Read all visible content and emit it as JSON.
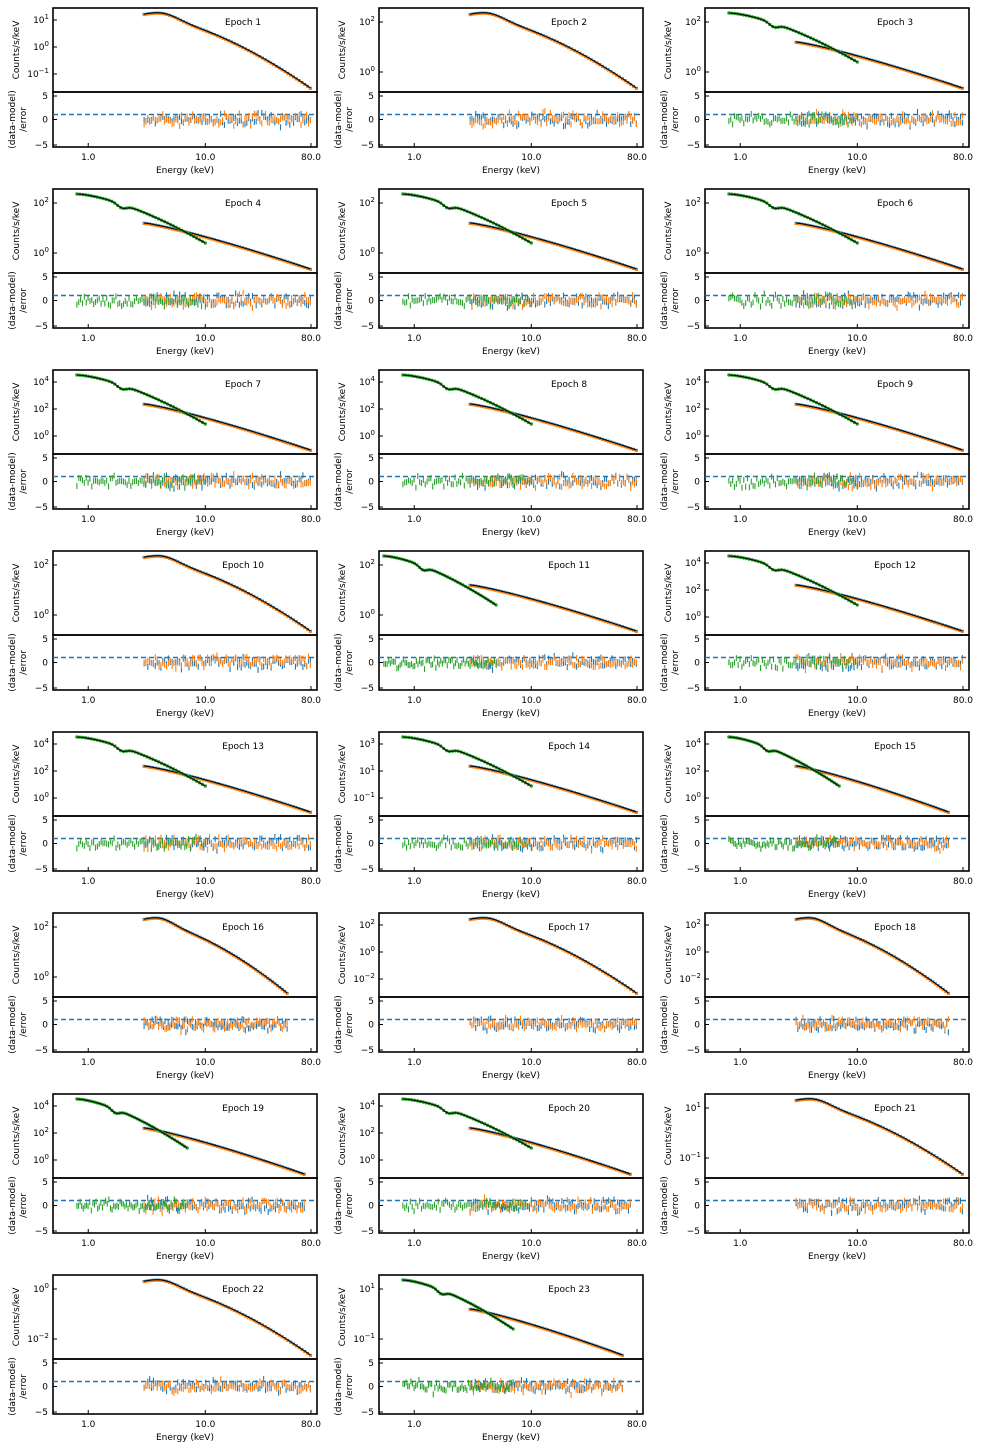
{
  "figure": {
    "panel_title_prefix": "Epoch",
    "top_ylabel": "Counts/s/keV",
    "bottom_ylabel_line1": "(data-model)",
    "bottom_ylabel_line2": "/error",
    "xlabel": "Energy (keV)",
    "x_ticks": [
      "1.0",
      "10.0",
      "80.0"
    ],
    "resid_ticks": [
      "5",
      "0",
      "−5"
    ],
    "colors": {
      "nustar_a": "#1f77b4",
      "nustar_b": "#ff7f0e",
      "swift": "#2ca02c",
      "model": "#000000",
      "ref_line": "#1f77b4"
    }
  },
  "chart_data": [
    {
      "type": "scatter",
      "title": "Epoch 1",
      "xlabel": "Energy (keV)",
      "ylabel": "Counts/s/keV",
      "xscale": "log",
      "xlim": [
        0.5,
        90
      ],
      "yscale": "log",
      "ytick_labels": [
        "10^1",
        "10^0",
        "10^-1"
      ],
      "has_swift": false,
      "xrange": [
        3,
        79
      ],
      "resid_ylim": [
        -5,
        5
      ]
    },
    {
      "type": "scatter",
      "title": "Epoch 2",
      "xlabel": "Energy (keV)",
      "ylabel": "Counts/s/keV",
      "xscale": "log",
      "xlim": [
        0.5,
        90
      ],
      "yscale": "log",
      "ytick_labels": [
        "10^2",
        "10^0"
      ],
      "has_swift": false,
      "xrange": [
        3,
        79
      ],
      "resid_ylim": [
        -5,
        5
      ]
    },
    {
      "type": "scatter",
      "title": "Epoch 3",
      "xlabel": "Energy (keV)",
      "ylabel": "Counts/s/keV",
      "xscale": "log",
      "xlim": [
        0.5,
        90
      ],
      "yscale": "log",
      "ytick_labels": [
        "10^2",
        "10^0"
      ],
      "has_swift": true,
      "xrange": [
        0.8,
        79
      ],
      "resid_ylim": [
        -5,
        5
      ]
    },
    {
      "type": "scatter",
      "title": "Epoch 4",
      "xlabel": "Energy (keV)",
      "ylabel": "Counts/s/keV",
      "xscale": "log",
      "xlim": [
        0.5,
        90
      ],
      "yscale": "log",
      "ytick_labels": [
        "10^2",
        "10^0"
      ],
      "has_swift": true,
      "xrange": [
        0.8,
        79
      ],
      "resid_ylim": [
        -5,
        5
      ]
    },
    {
      "type": "scatter",
      "title": "Epoch 5",
      "xlabel": "Energy (keV)",
      "ylabel": "Counts/s/keV",
      "xscale": "log",
      "xlim": [
        0.5,
        90
      ],
      "yscale": "log",
      "ytick_labels": [
        "10^2",
        "10^0"
      ],
      "has_swift": true,
      "xrange": [
        0.8,
        79
      ],
      "resid_ylim": [
        -5,
        5
      ]
    },
    {
      "type": "scatter",
      "title": "Epoch 6",
      "xlabel": "Energy (keV)",
      "ylabel": "Counts/s/keV",
      "xscale": "log",
      "xlim": [
        0.5,
        90
      ],
      "yscale": "log",
      "ytick_labels": [
        "10^2",
        "10^0"
      ],
      "has_swift": true,
      "xrange": [
        0.8,
        79
      ],
      "resid_ylim": [
        -5,
        5
      ]
    },
    {
      "type": "scatter",
      "title": "Epoch 7",
      "xlabel": "Energy (keV)",
      "ylabel": "Counts/s/keV",
      "xscale": "log",
      "xlim": [
        0.5,
        90
      ],
      "yscale": "log",
      "ytick_labels": [
        "10^4",
        "10^2",
        "10^0"
      ],
      "has_swift": true,
      "xrange": [
        0.8,
        79
      ],
      "resid_ylim": [
        -5,
        5
      ]
    },
    {
      "type": "scatter",
      "title": "Epoch 8",
      "xlabel": "Energy (keV)",
      "ylabel": "Counts/s/keV",
      "xscale": "log",
      "xlim": [
        0.5,
        90
      ],
      "yscale": "log",
      "ytick_labels": [
        "10^4",
        "10^2",
        "10^0"
      ],
      "has_swift": true,
      "xrange": [
        0.8,
        79
      ],
      "resid_ylim": [
        -5,
        5
      ]
    },
    {
      "type": "scatter",
      "title": "Epoch 9",
      "xlabel": "Energy (keV)",
      "ylabel": "Counts/s/keV",
      "xscale": "log",
      "xlim": [
        0.5,
        90
      ],
      "yscale": "log",
      "ytick_labels": [
        "10^4",
        "10^2",
        "10^0"
      ],
      "has_swift": true,
      "xrange": [
        0.8,
        79
      ],
      "resid_ylim": [
        -5,
        5
      ]
    },
    {
      "type": "scatter",
      "title": "Epoch 10",
      "xlabel": "Energy (keV)",
      "ylabel": "Counts/s/keV",
      "xscale": "log",
      "xlim": [
        0.5,
        90
      ],
      "yscale": "log",
      "ytick_labels": [
        "10^2",
        "10^0"
      ],
      "has_swift": false,
      "xrange": [
        3,
        79
      ],
      "resid_ylim": [
        -5,
        5
      ]
    },
    {
      "type": "scatter",
      "title": "Epoch 11",
      "xlabel": "Energy (keV)",
      "ylabel": "Counts/s/keV",
      "xscale": "log",
      "xlim": [
        0.5,
        90
      ],
      "yscale": "log",
      "ytick_labels": [
        "10^2",
        "10^0"
      ],
      "has_swift": true,
      "xrange": [
        0.5,
        79
      ],
      "resid_ylim": [
        -5,
        5
      ]
    },
    {
      "type": "scatter",
      "title": "Epoch 12",
      "xlabel": "Energy (keV)",
      "ylabel": "Counts/s/keV",
      "xscale": "log",
      "xlim": [
        0.5,
        90
      ],
      "yscale": "log",
      "ytick_labels": [
        "10^4",
        "10^2",
        "10^0"
      ],
      "has_swift": true,
      "xrange": [
        0.8,
        79
      ],
      "resid_ylim": [
        -5,
        5
      ]
    },
    {
      "type": "scatter",
      "title": "Epoch 13",
      "xlabel": "Energy (keV)",
      "ylabel": "Counts/s/keV",
      "xscale": "log",
      "xlim": [
        0.5,
        90
      ],
      "yscale": "log",
      "ytick_labels": [
        "10^4",
        "10^2",
        "10^0"
      ],
      "has_swift": true,
      "xrange": [
        0.8,
        79
      ],
      "resid_ylim": [
        -5,
        5
      ]
    },
    {
      "type": "scatter",
      "title": "Epoch 14",
      "xlabel": "Energy (keV)",
      "ylabel": "Counts/s/keV",
      "xscale": "log",
      "xlim": [
        0.5,
        90
      ],
      "yscale": "log",
      "ytick_labels": [
        "10^3",
        "10^1",
        "10^-1"
      ],
      "has_swift": true,
      "xrange": [
        0.8,
        79
      ],
      "resid_ylim": [
        -5,
        5
      ]
    },
    {
      "type": "scatter",
      "title": "Epoch 15",
      "xlabel": "Energy (keV)",
      "ylabel": "Counts/s/keV",
      "xscale": "log",
      "xlim": [
        0.5,
        90
      ],
      "yscale": "log",
      "ytick_labels": [
        "10^4",
        "10^2",
        "10^0"
      ],
      "has_swift": true,
      "xrange": [
        0.8,
        60
      ],
      "resid_ylim": [
        -5,
        5
      ]
    },
    {
      "type": "scatter",
      "title": "Epoch 16",
      "xlabel": "Energy (keV)",
      "ylabel": "Counts/s/keV",
      "xscale": "log",
      "xlim": [
        0.5,
        90
      ],
      "yscale": "log",
      "ytick_labels": [
        "10^2",
        "10^0"
      ],
      "has_swift": false,
      "xrange": [
        3,
        50
      ],
      "resid_ylim": [
        -5,
        5
      ]
    },
    {
      "type": "scatter",
      "title": "Epoch 17",
      "xlabel": "Energy (keV)",
      "ylabel": "Counts/s/keV",
      "xscale": "log",
      "xlim": [
        0.5,
        90
      ],
      "yscale": "log",
      "ytick_labels": [
        "10^2",
        "10^0",
        "10^-2"
      ],
      "has_swift": false,
      "xrange": [
        3,
        79
      ],
      "resid_ylim": [
        -5,
        5
      ]
    },
    {
      "type": "scatter",
      "title": "Epoch 18",
      "xlabel": "Energy (keV)",
      "ylabel": "Counts/s/keV",
      "xscale": "log",
      "xlim": [
        0.5,
        90
      ],
      "yscale": "log",
      "ytick_labels": [
        "10^2",
        "10^0",
        "10^-2"
      ],
      "has_swift": false,
      "xrange": [
        3,
        60
      ],
      "resid_ylim": [
        -5,
        5
      ]
    },
    {
      "type": "scatter",
      "title": "Epoch 19",
      "xlabel": "Energy (keV)",
      "ylabel": "Counts/s/keV",
      "xscale": "log",
      "xlim": [
        0.5,
        90
      ],
      "yscale": "log",
      "ytick_labels": [
        "10^4",
        "10^2",
        "10^0"
      ],
      "has_swift": true,
      "xrange": [
        0.8,
        70
      ],
      "resid_ylim": [
        -5,
        5
      ]
    },
    {
      "type": "scatter",
      "title": "Epoch 20",
      "xlabel": "Energy (keV)",
      "ylabel": "Counts/s/keV",
      "xscale": "log",
      "xlim": [
        0.5,
        90
      ],
      "yscale": "log",
      "ytick_labels": [
        "10^4",
        "10^2",
        "10^0"
      ],
      "has_swift": true,
      "xrange": [
        0.8,
        70
      ],
      "resid_ylim": [
        -5,
        5
      ]
    },
    {
      "type": "scatter",
      "title": "Epoch 21",
      "xlabel": "Energy (keV)",
      "ylabel": "Counts/s/keV",
      "xscale": "log",
      "xlim": [
        0.5,
        90
      ],
      "yscale": "log",
      "ytick_labels": [
        "10^1",
        "10^-1"
      ],
      "has_swift": false,
      "xrange": [
        3,
        79
      ],
      "resid_ylim": [
        -5,
        5
      ]
    },
    {
      "type": "scatter",
      "title": "Epoch 22",
      "xlabel": "Energy (keV)",
      "ylabel": "Counts/s/keV",
      "xscale": "log",
      "xlim": [
        0.5,
        90
      ],
      "yscale": "log",
      "ytick_labels": [
        "10^0",
        "10^-2"
      ],
      "has_swift": false,
      "xrange": [
        3,
        79
      ],
      "resid_ylim": [
        -5,
        5
      ]
    },
    {
      "type": "scatter",
      "title": "Epoch 23",
      "xlabel": "Energy (keV)",
      "ylabel": "Counts/s/keV",
      "xscale": "log",
      "xlim": [
        0.5,
        90
      ],
      "yscale": "log",
      "ytick_labels": [
        "10^1",
        "10^-1"
      ],
      "has_swift": true,
      "xrange": [
        0.8,
        60
      ],
      "resid_ylim": [
        -5,
        5
      ]
    }
  ]
}
